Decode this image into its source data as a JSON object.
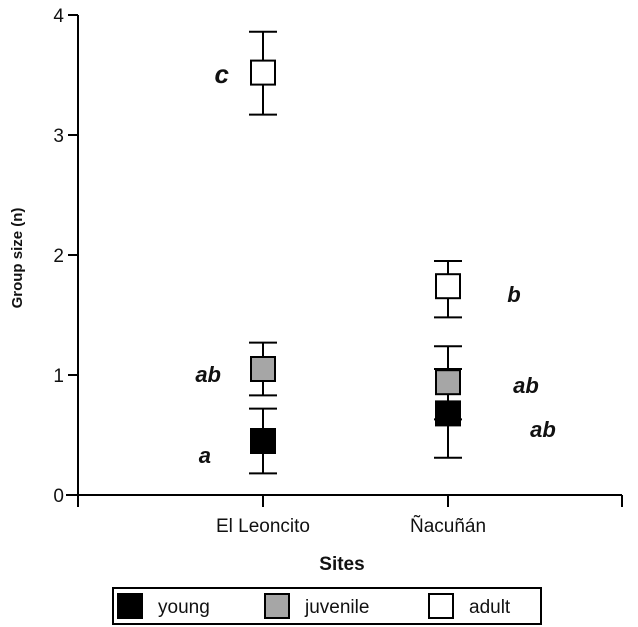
{
  "chart_data": {
    "type": "scatter",
    "title": "",
    "xlabel": "Sites",
    "ylabel": "Group size (n)",
    "categories": [
      "El Leoncito",
      "Ñacuñán"
    ],
    "ylim": [
      0,
      4
    ],
    "yticks": [
      "0",
      "1",
      "2",
      "3",
      "4"
    ],
    "grid": false,
    "legend_position": "bottom",
    "series": [
      {
        "name": "young",
        "color": "#000000",
        "values": [
          0.45,
          0.68
        ],
        "err_low": [
          0.18,
          0.31
        ],
        "err_high": [
          0.72,
          1.05
        ],
        "letters": [
          "a",
          "ab"
        ]
      },
      {
        "name": "juvenile",
        "color": "#a6a6a6",
        "values": [
          1.05,
          0.94
        ],
        "err_low": [
          0.83,
          0.63
        ],
        "err_high": [
          1.27,
          1.24
        ],
        "letters": [
          "ab",
          "ab"
        ]
      },
      {
        "name": "adult",
        "color": "#ffffff",
        "values": [
          3.52,
          1.74
        ],
        "err_low": [
          3.17,
          1.48
        ],
        "err_high": [
          3.86,
          1.95
        ],
        "letters": [
          "c",
          "b"
        ]
      }
    ]
  }
}
